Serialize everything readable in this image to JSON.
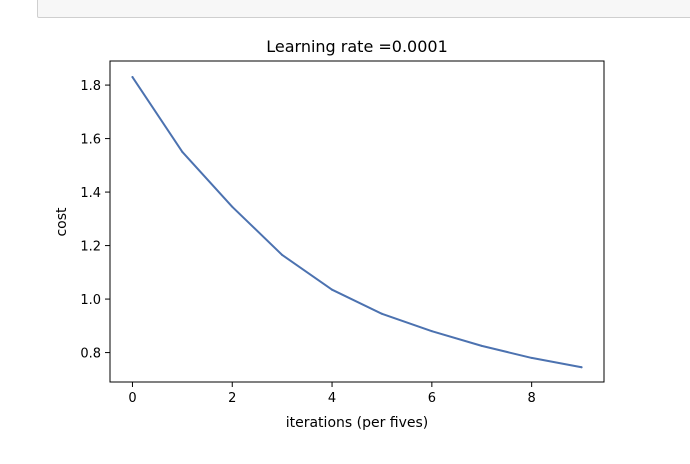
{
  "chart_data": {
    "type": "line",
    "title": "Learning rate =0.0001",
    "xlabel": "iterations (per fives)",
    "ylabel": "cost",
    "xlim": [
      -0.45,
      9.45
    ],
    "ylim": [
      0.69,
      1.89
    ],
    "xticks": [
      0,
      2,
      4,
      6,
      8
    ],
    "yticks": [
      0.8,
      1.0,
      1.2,
      1.4,
      1.6,
      1.8
    ],
    "ytick_labels": [
      "0.8",
      "1.0",
      "1.2",
      "1.4",
      "1.6",
      "1.8"
    ],
    "grid": false,
    "series": [
      {
        "color": "#4c72b0",
        "x": [
          0,
          1,
          2,
          3,
          4,
          5,
          6,
          7,
          8,
          9
        ],
        "y": [
          1.83,
          1.55,
          1.345,
          1.165,
          1.035,
          0.945,
          0.88,
          0.825,
          0.78,
          0.745
        ]
      }
    ]
  }
}
